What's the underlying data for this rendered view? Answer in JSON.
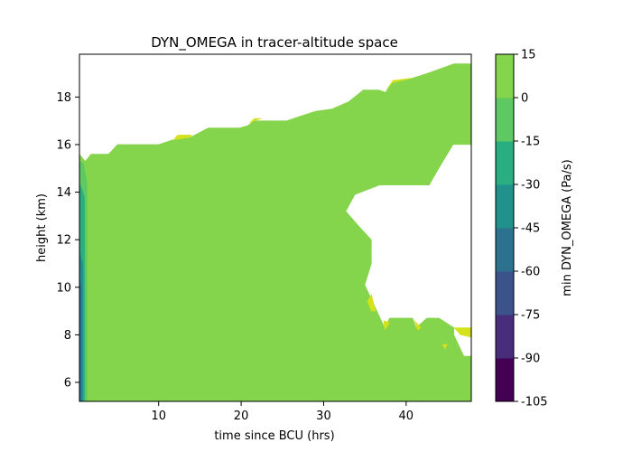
{
  "chart_data": {
    "type": "contourf",
    "title": "DYN_OMEGA in tracer-altitude space",
    "xlabel": "time since BCU (hrs)",
    "ylabel": "height (km)",
    "xlim": [
      0.4,
      47.9
    ],
    "ylim": [
      5.2,
      19.8
    ],
    "x_ticks": [
      10,
      20,
      30,
      40
    ],
    "y_ticks": [
      6,
      8,
      10,
      12,
      14,
      16,
      18
    ],
    "grid": false,
    "colorbar": {
      "label": "min DYN_OMEGA (Pa/s)",
      "levels": [
        -105,
        -90,
        -75,
        -60,
        -45,
        -30,
        -15,
        0,
        15
      ],
      "colors": [
        "#440154",
        "#472d7b",
        "#3b528b",
        "#2c728e",
        "#21918c",
        "#28ae80",
        "#5ec962",
        "#84d44c",
        "#d4e21a"
      ]
    },
    "regions": [
      {
        "band": [
          -15,
          0
        ],
        "color": "#84d44c",
        "polygon": [
          [
            0.4,
            5.2
          ],
          [
            47.9,
            5.2
          ],
          [
            47.9,
            7.1
          ],
          [
            47,
            7.1
          ],
          [
            45.8,
            8.0
          ],
          [
            45.8,
            8.3
          ],
          [
            44,
            8.7
          ],
          [
            42.5,
            8.7
          ],
          [
            41.2,
            8.3
          ],
          [
            40.8,
            8.7
          ],
          [
            38,
            8.7
          ],
          [
            37.4,
            8.3
          ],
          [
            35.8,
            9.5
          ],
          [
            35,
            10.1
          ],
          [
            35.8,
            11.0
          ],
          [
            35.8,
            12.0
          ],
          [
            34.2,
            12.6
          ],
          [
            32.7,
            13.2
          ],
          [
            33.8,
            13.9
          ],
          [
            36.8,
            14.3
          ],
          [
            42.8,
            14.3
          ],
          [
            43.8,
            14.9
          ],
          [
            45.7,
            16.0
          ],
          [
            47.9,
            16.0
          ],
          [
            47.9,
            19.4
          ],
          [
            45.8,
            19.4
          ],
          [
            42.6,
            19.0
          ],
          [
            40.8,
            18.8
          ],
          [
            38.3,
            18.6
          ],
          [
            37.5,
            18.2
          ],
          [
            36.7,
            18.3
          ],
          [
            34.8,
            18.3
          ],
          [
            33,
            17.8
          ],
          [
            31,
            17.5
          ],
          [
            29,
            17.4
          ],
          [
            27.2,
            17.2
          ],
          [
            25.5,
            17.0
          ],
          [
            21.6,
            17.0
          ],
          [
            20.8,
            16.8
          ],
          [
            19.8,
            16.7
          ],
          [
            16.0,
            16.7
          ],
          [
            13.8,
            16.3
          ],
          [
            11.7,
            16.2
          ],
          [
            10.0,
            16.0
          ],
          [
            5.0,
            16.0
          ],
          [
            4.2,
            15.7
          ],
          [
            3.9,
            15.6
          ],
          [
            1.8,
            15.6
          ],
          [
            1.1,
            15.3
          ],
          [
            0.4,
            15.6
          ]
        ]
      },
      {
        "band": [
          0,
          15
        ],
        "color": "#d4e21a",
        "polygons": [
          [
            [
              35.3,
              9.4
            ],
            [
              35.8,
              9.0
            ],
            [
              36.3,
              9.0
            ],
            [
              35.8,
              9.7
            ]
          ],
          [
            [
              37.3,
              8.6
            ],
            [
              38.0,
              8.5
            ],
            [
              37.4,
              8.2
            ]
          ],
          [
            [
              41.0,
              8.6
            ],
            [
              41.8,
              8.3
            ],
            [
              41.4,
              8.2
            ]
          ],
          [
            [
              45.8,
              8.3
            ],
            [
              47.9,
              8.3
            ],
            [
              47.9,
              7.9
            ],
            [
              46.6,
              8.0
            ]
          ],
          [
            [
              44.4,
              7.6
            ],
            [
              45.0,
              7.6
            ],
            [
              44.7,
              7.4
            ]
          ],
          [
            [
              11.8,
              16.2
            ],
            [
              12.3,
              16.4
            ],
            [
              14.0,
              16.4
            ],
            [
              13.8,
              16.3
            ]
          ],
          [
            [
              21.0,
              16.9
            ],
            [
              21.6,
              17.1
            ],
            [
              22.5,
              17.1
            ],
            [
              21.6,
              17.0
            ]
          ],
          [
            [
              37.6,
              18.3
            ],
            [
              38.4,
              18.7
            ],
            [
              40.8,
              18.8
            ],
            [
              38.3,
              18.6
            ]
          ]
        ]
      },
      {
        "band": [
          -30,
          -15
        ],
        "color": "#5ec962",
        "polygon": [
          [
            0.4,
            5.2
          ],
          [
            1.3,
            5.2
          ],
          [
            1.3,
            14.4
          ],
          [
            0.9,
            15.2
          ],
          [
            0.4,
            15.3
          ]
        ]
      },
      {
        "band": [
          -45,
          -30
        ],
        "color": "#28ae80",
        "polygon": [
          [
            0.4,
            5.2
          ],
          [
            1.0,
            5.2
          ],
          [
            1.0,
            13.8
          ],
          [
            0.4,
            14.4
          ]
        ]
      },
      {
        "band": [
          -60,
          -45
        ],
        "color": "#21918c",
        "polygon": [
          [
            0.4,
            5.2
          ],
          [
            0.8,
            5.2
          ],
          [
            0.8,
            11.0
          ],
          [
            0.4,
            11.5
          ]
        ]
      },
      {
        "band": [
          -75,
          -60
        ],
        "color": "#2c728e",
        "polygon": [
          [
            0.4,
            5.2
          ],
          [
            0.6,
            5.2
          ],
          [
            0.6,
            10.0
          ],
          [
            0.4,
            10.4
          ]
        ]
      }
    ]
  }
}
